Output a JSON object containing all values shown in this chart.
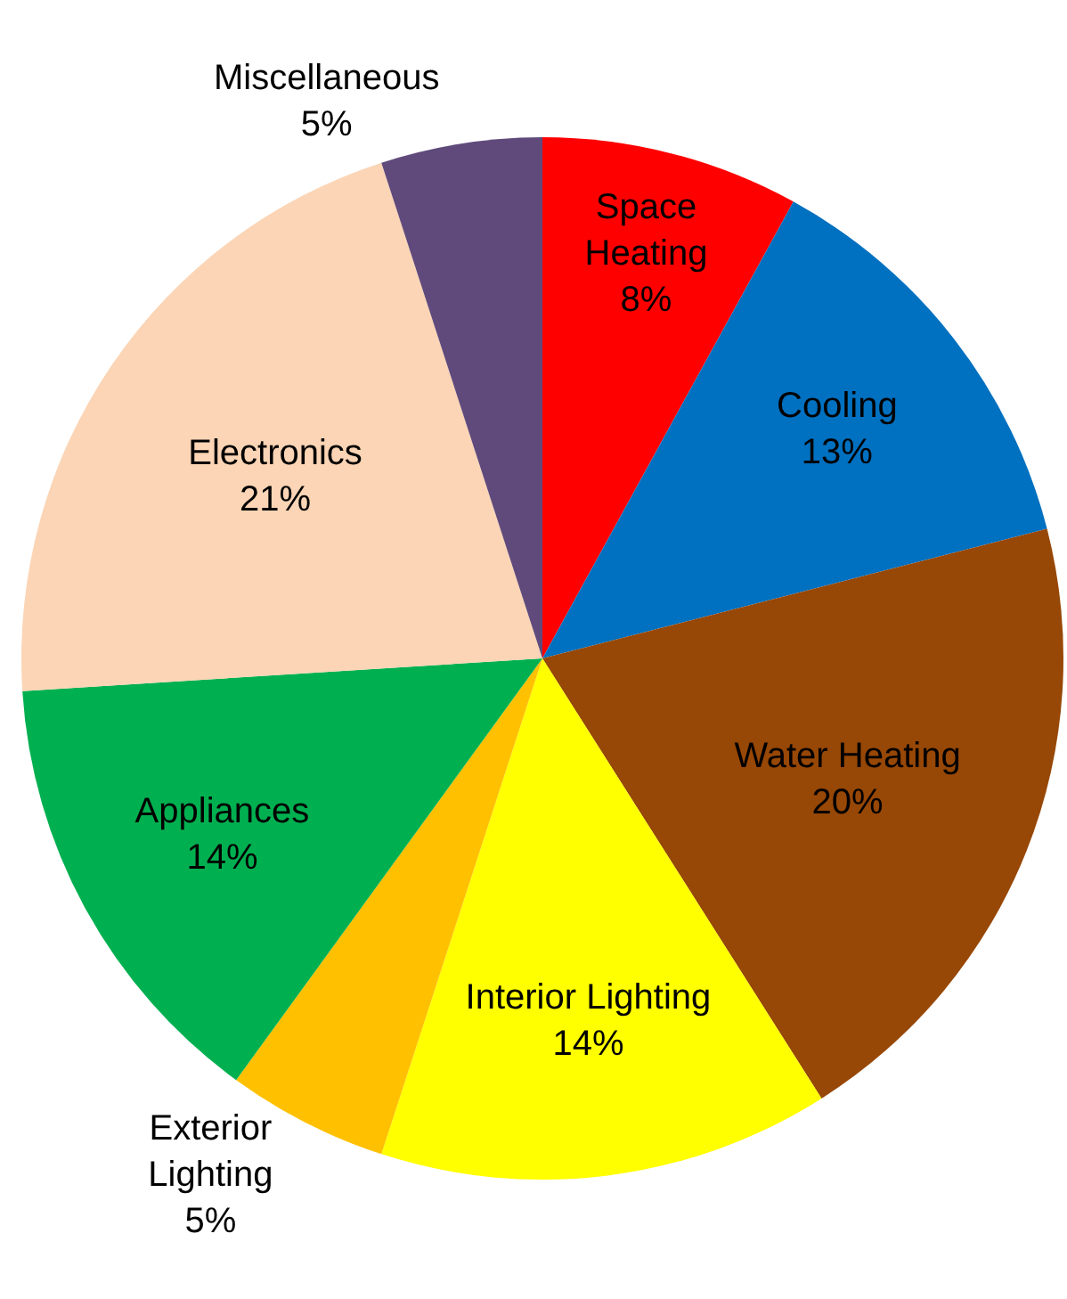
{
  "chart_data": {
    "type": "pie",
    "categories": [
      "Space\nHeating",
      "Cooling",
      "Water Heating",
      "Interior Lighting",
      "Exterior\nLighting",
      "Appliances",
      "Electronics",
      "Miscellaneous"
    ],
    "values": [
      8,
      13,
      20,
      14,
      5,
      14,
      21,
      5
    ],
    "value_labels": [
      "8%",
      "13%",
      "20%",
      "14%",
      "5%",
      "14%",
      "21%",
      "5%"
    ],
    "colors": [
      "#ff0000",
      "#0070c0",
      "#974706",
      "#ffff00",
      "#ffc000",
      "#00b050",
      "#fbd5b5",
      "#604a7b"
    ],
    "legend": false
  }
}
